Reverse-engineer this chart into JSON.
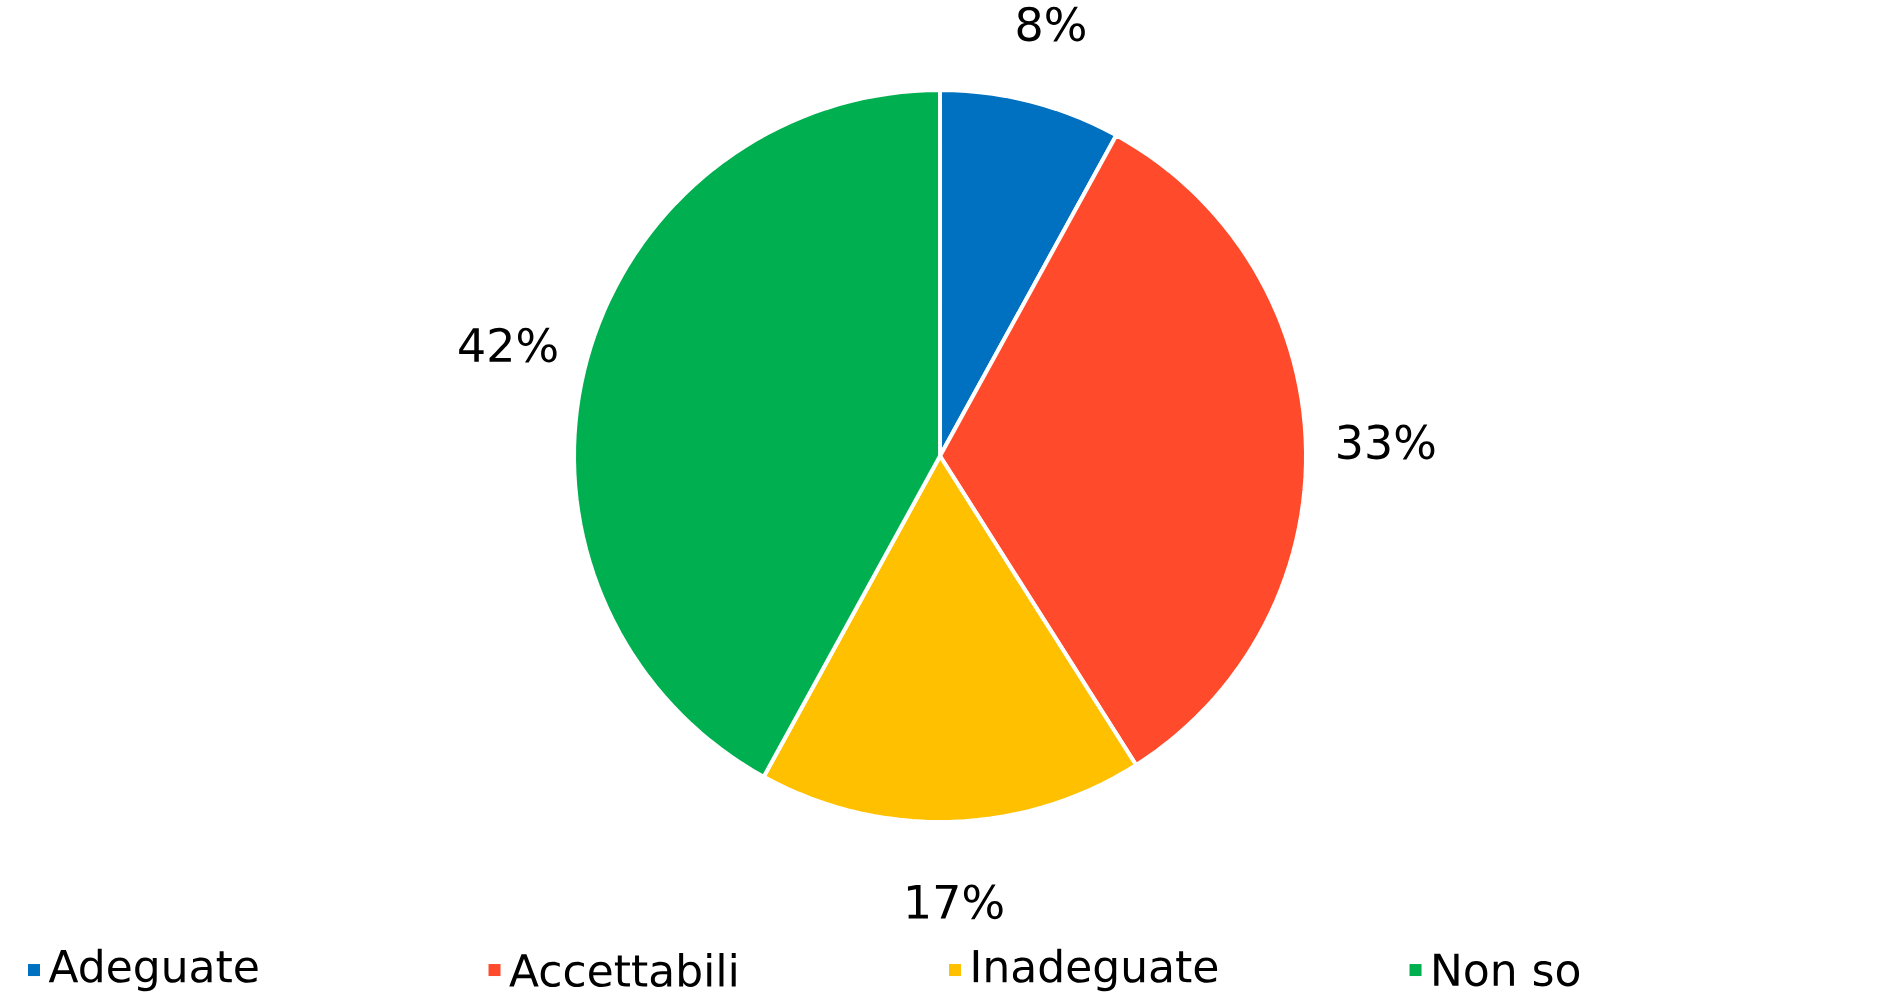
{
  "chart_data": {
    "type": "pie",
    "categories": [
      "Adeguate",
      "Accettabili",
      "Inadeguate",
      "Non so"
    ],
    "values": [
      8,
      33,
      17,
      42
    ],
    "value_labels": [
      "8%",
      "33%",
      "17%",
      "42%"
    ],
    "colors": [
      "#0070c0",
      "#ff4b2b",
      "#ffc000",
      "#00b050"
    ],
    "legend": "bottom"
  }
}
